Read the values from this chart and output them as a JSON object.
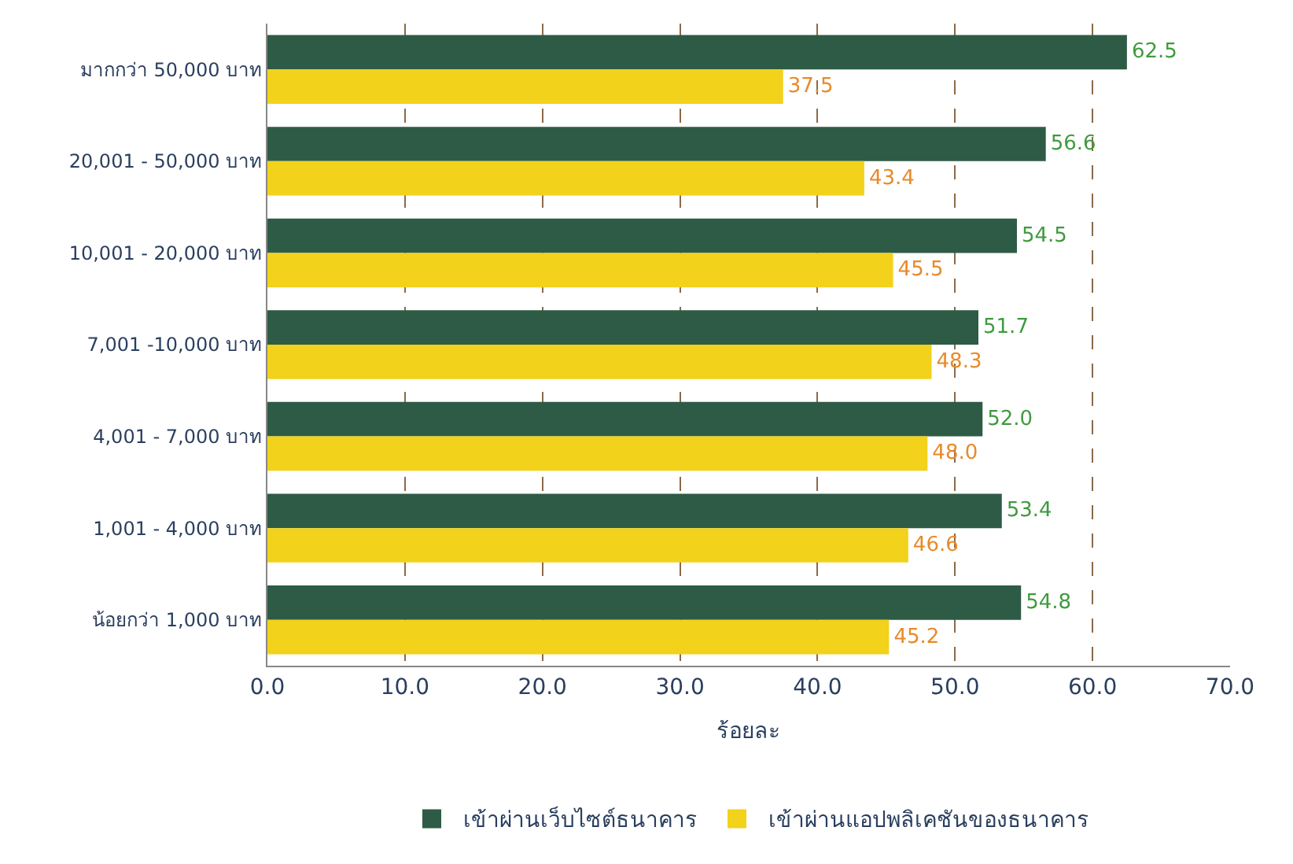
{
  "chart_data": {
    "type": "bar",
    "orientation": "horizontal",
    "xlabel": "ร้อยละ",
    "categories": [
      "มากกว่า 50,000 บาท",
      "20,001 - 50,000 บาท",
      "10,001 - 20,000 บาท",
      "7,001 -10,000 บาท",
      "4,001 - 7,000 บาท",
      "1,001 - 4,000 บาท",
      "น้อยกว่า 1,000 บาท"
    ],
    "series": [
      {
        "name": "เข้าผ่านเว็บไซต์ธนาคาร",
        "color": "#2e5b45",
        "values": [
          62.5,
          56.6,
          54.5,
          51.7,
          52.0,
          53.4,
          54.8
        ],
        "value_labels": [
          "62.5",
          "56.6",
          "54.5",
          "51.7",
          "52.0",
          "53.4",
          "54.8"
        ]
      },
      {
        "name": "เข้าผ่านแอปพลิเคชันของธนาคาร",
        "color": "#f2d21a",
        "values": [
          37.5,
          43.4,
          45.5,
          48.3,
          48.0,
          46.6,
          45.2
        ],
        "value_labels": [
          "37.5",
          "43.4",
          "45.5",
          "48.3",
          "48.0",
          "46.6",
          "45.2"
        ]
      }
    ],
    "xlim": [
      0,
      70
    ],
    "xticks": [
      {
        "value": 0,
        "label": "0.0"
      },
      {
        "value": 10,
        "label": "10.0"
      },
      {
        "value": 20,
        "label": "20.0"
      },
      {
        "value": 30,
        "label": "30.0"
      },
      {
        "value": 40,
        "label": "40.0"
      },
      {
        "value": 50,
        "label": "50.0"
      },
      {
        "value": 60,
        "label": "60.0"
      },
      {
        "value": 70,
        "label": "70.0"
      }
    ],
    "grid": "x",
    "legend": "bottom"
  }
}
